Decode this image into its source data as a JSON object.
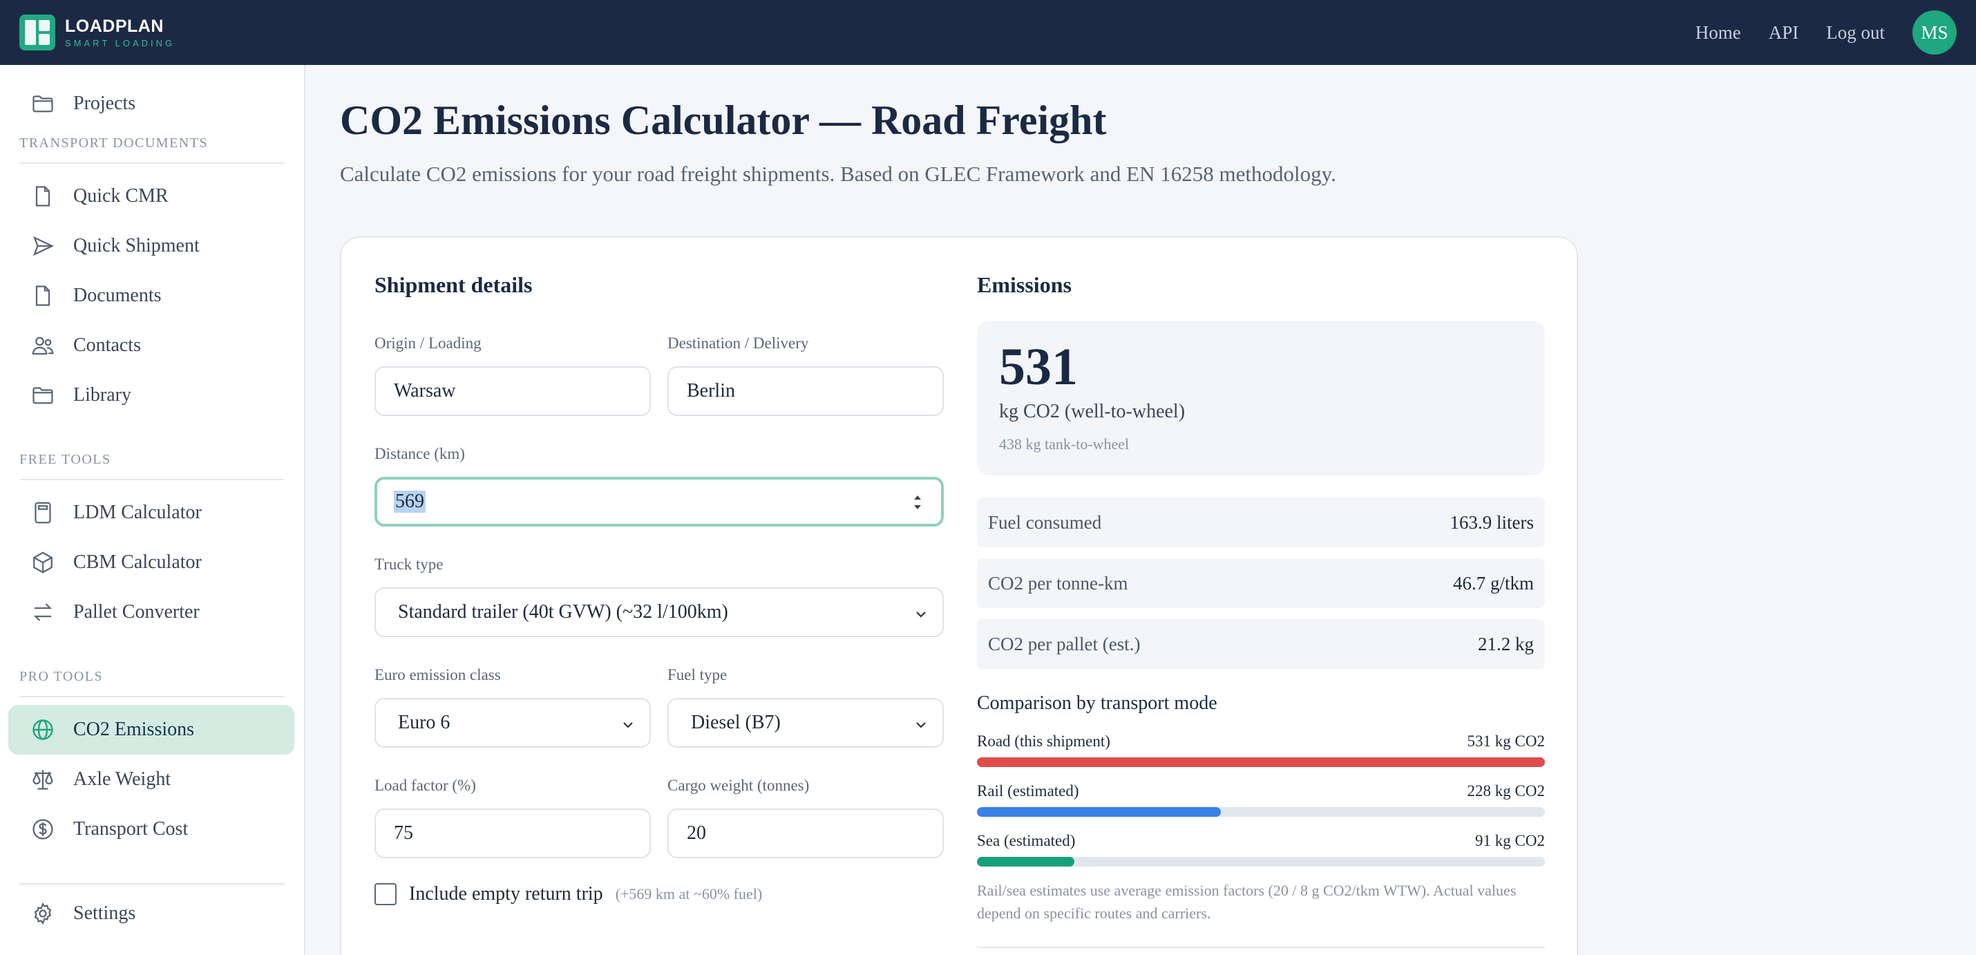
{
  "header": {
    "brand": "LOADPLAN",
    "tagline": "SMART LOADING",
    "nav": [
      "Home",
      "API",
      "Log out"
    ],
    "user_initials": "MS"
  },
  "sidebar": {
    "top_item": "Projects",
    "sections": [
      {
        "heading": "TRANSPORT DOCUMENTS",
        "items": [
          "Quick CMR",
          "Quick Shipment",
          "Documents",
          "Contacts",
          "Library"
        ]
      },
      {
        "heading": "FREE TOOLS",
        "items": [
          "LDM Calculator",
          "CBM Calculator",
          "Pallet Converter"
        ]
      },
      {
        "heading": "PRO TOOLS",
        "items": [
          "CO2 Emissions",
          "Axle Weight",
          "Transport Cost"
        ]
      }
    ],
    "active_item": "CO2 Emissions",
    "settings": "Settings"
  },
  "page": {
    "title": "CO2 Emissions Calculator — Road Freight",
    "subtitle": "Calculate CO2 emissions for your road freight shipments. Based on GLEC Framework and EN 16258 methodology."
  },
  "form": {
    "title": "Shipment details",
    "origin": {
      "label": "Origin / Loading",
      "value": "Warsaw"
    },
    "destination": {
      "label": "Destination / Delivery",
      "value": "Berlin"
    },
    "distance": {
      "label": "Distance (km)",
      "value": "569"
    },
    "truck": {
      "label": "Truck type",
      "value": "Standard trailer (40t GVW) (~32 l/100km)"
    },
    "euro": {
      "label": "Euro emission class",
      "value": "Euro 6"
    },
    "fuel": {
      "label": "Fuel type",
      "value": "Diesel (B7)"
    },
    "load_factor": {
      "label": "Load factor (%)",
      "value": "75"
    },
    "cargo_weight": {
      "label": "Cargo weight (tonnes)",
      "value": "20"
    },
    "return_trip": {
      "label": "Include empty return trip",
      "hint": "(+569 km at ~60% fuel)",
      "checked": false
    }
  },
  "results": {
    "title": "Emissions",
    "total": "531",
    "total_unit": "kg CO2 (well-to-wheel)",
    "ttw_note": "438 kg tank-to-wheel",
    "metrics": [
      {
        "label": "Fuel consumed",
        "value": "163.9 liters"
      },
      {
        "label": "CO2 per tonne-km",
        "value": "46.7 g/tkm"
      },
      {
        "label": "CO2 per pallet (est.)",
        "value": "21.2 kg"
      }
    ],
    "comparison": {
      "title": "Comparison by transport mode",
      "modes": [
        {
          "label": "Road (this shipment)",
          "value": "531 kg CO2",
          "kg": 531,
          "color": "#e04b4b"
        },
        {
          "label": "Rail (estimated)",
          "value": "228 kg CO2",
          "kg": 228,
          "color": "#3a80e6"
        },
        {
          "label": "Sea (estimated)",
          "value": "91 kg CO2",
          "kg": 91,
          "color": "#16a07a"
        }
      ],
      "note": "Rail/sea estimates use average emission factors (20 / 8 g CO2/tkm WTW). Actual values depend on specific routes and carriers."
    }
  }
}
